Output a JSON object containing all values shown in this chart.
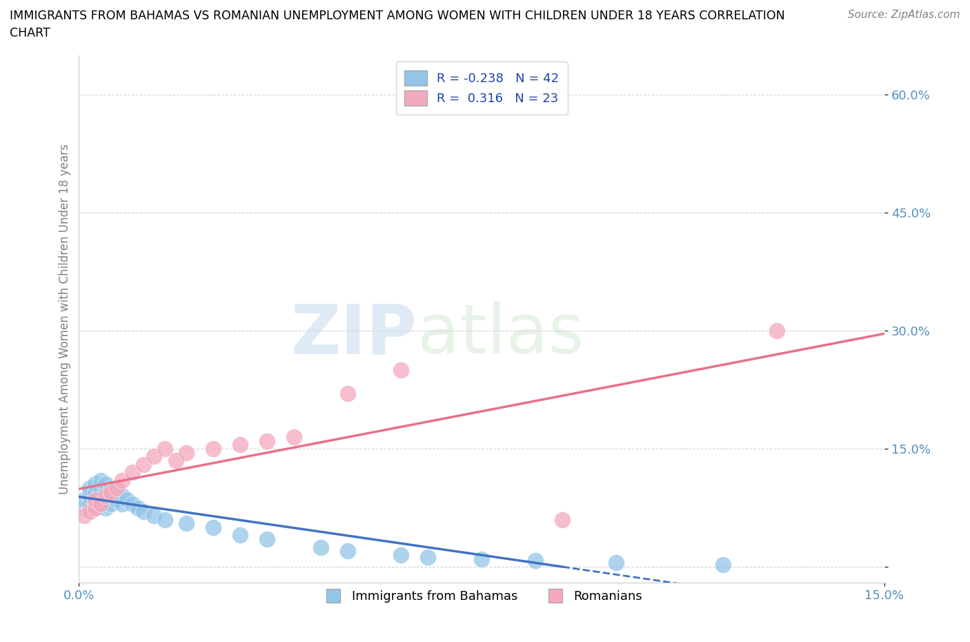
{
  "title_line1": "IMMIGRANTS FROM BAHAMAS VS ROMANIAN UNEMPLOYMENT AMONG WOMEN WITH CHILDREN UNDER 18 YEARS CORRELATION",
  "title_line2": "CHART",
  "source": "Source: ZipAtlas.com",
  "ylabel": "Unemployment Among Women with Children Under 18 years",
  "xlim": [
    0.0,
    0.15
  ],
  "ylim": [
    -0.02,
    0.65
  ],
  "yticks": [
    0.0,
    0.15,
    0.3,
    0.45,
    0.6
  ],
  "ytick_labels": [
    "",
    "15.0%",
    "30.0%",
    "45.0%",
    "60.0%"
  ],
  "xticks": [
    0.0,
    0.15
  ],
  "xtick_labels": [
    "0.0%",
    "15.0%"
  ],
  "blue_R": -0.238,
  "blue_N": 42,
  "pink_R": 0.316,
  "pink_N": 23,
  "blue_color": "#92C5E8",
  "pink_color": "#F4A8BC",
  "blue_line_color": "#4472C4",
  "pink_line_color": "#E8708A",
  "legend_blue_label": "Immigrants from Bahamas",
  "legend_pink_label": "Romanians",
  "watermark_zip": "ZIP",
  "watermark_atlas": "atlas",
  "blue_x": [
    0.001,
    0.001,
    0.002,
    0.002,
    0.002,
    0.003,
    0.003,
    0.003,
    0.003,
    0.004,
    0.004,
    0.004,
    0.004,
    0.005,
    0.005,
    0.005,
    0.005,
    0.006,
    0.006,
    0.006,
    0.007,
    0.007,
    0.008,
    0.008,
    0.009,
    0.01,
    0.011,
    0.012,
    0.014,
    0.016,
    0.02,
    0.025,
    0.03,
    0.035,
    0.045,
    0.05,
    0.06,
    0.065,
    0.075,
    0.085,
    0.1,
    0.12
  ],
  "blue_y": [
    0.075,
    0.085,
    0.08,
    0.09,
    0.1,
    0.075,
    0.085,
    0.095,
    0.105,
    0.08,
    0.09,
    0.1,
    0.11,
    0.075,
    0.085,
    0.095,
    0.105,
    0.08,
    0.09,
    0.1,
    0.085,
    0.095,
    0.08,
    0.09,
    0.085,
    0.08,
    0.075,
    0.07,
    0.065,
    0.06,
    0.055,
    0.05,
    0.04,
    0.035,
    0.025,
    0.02,
    0.015,
    0.012,
    0.01,
    0.008,
    0.005,
    0.003
  ],
  "pink_x": [
    0.001,
    0.002,
    0.003,
    0.003,
    0.004,
    0.005,
    0.006,
    0.007,
    0.008,
    0.01,
    0.012,
    0.014,
    0.016,
    0.018,
    0.02,
    0.025,
    0.03,
    0.035,
    0.04,
    0.05,
    0.06,
    0.09,
    0.13
  ],
  "pink_y": [
    0.065,
    0.07,
    0.075,
    0.085,
    0.08,
    0.09,
    0.095,
    0.1,
    0.11,
    0.12,
    0.13,
    0.14,
    0.15,
    0.135,
    0.145,
    0.15,
    0.155,
    0.16,
    0.165,
    0.22,
    0.25,
    0.06,
    0.3
  ]
}
